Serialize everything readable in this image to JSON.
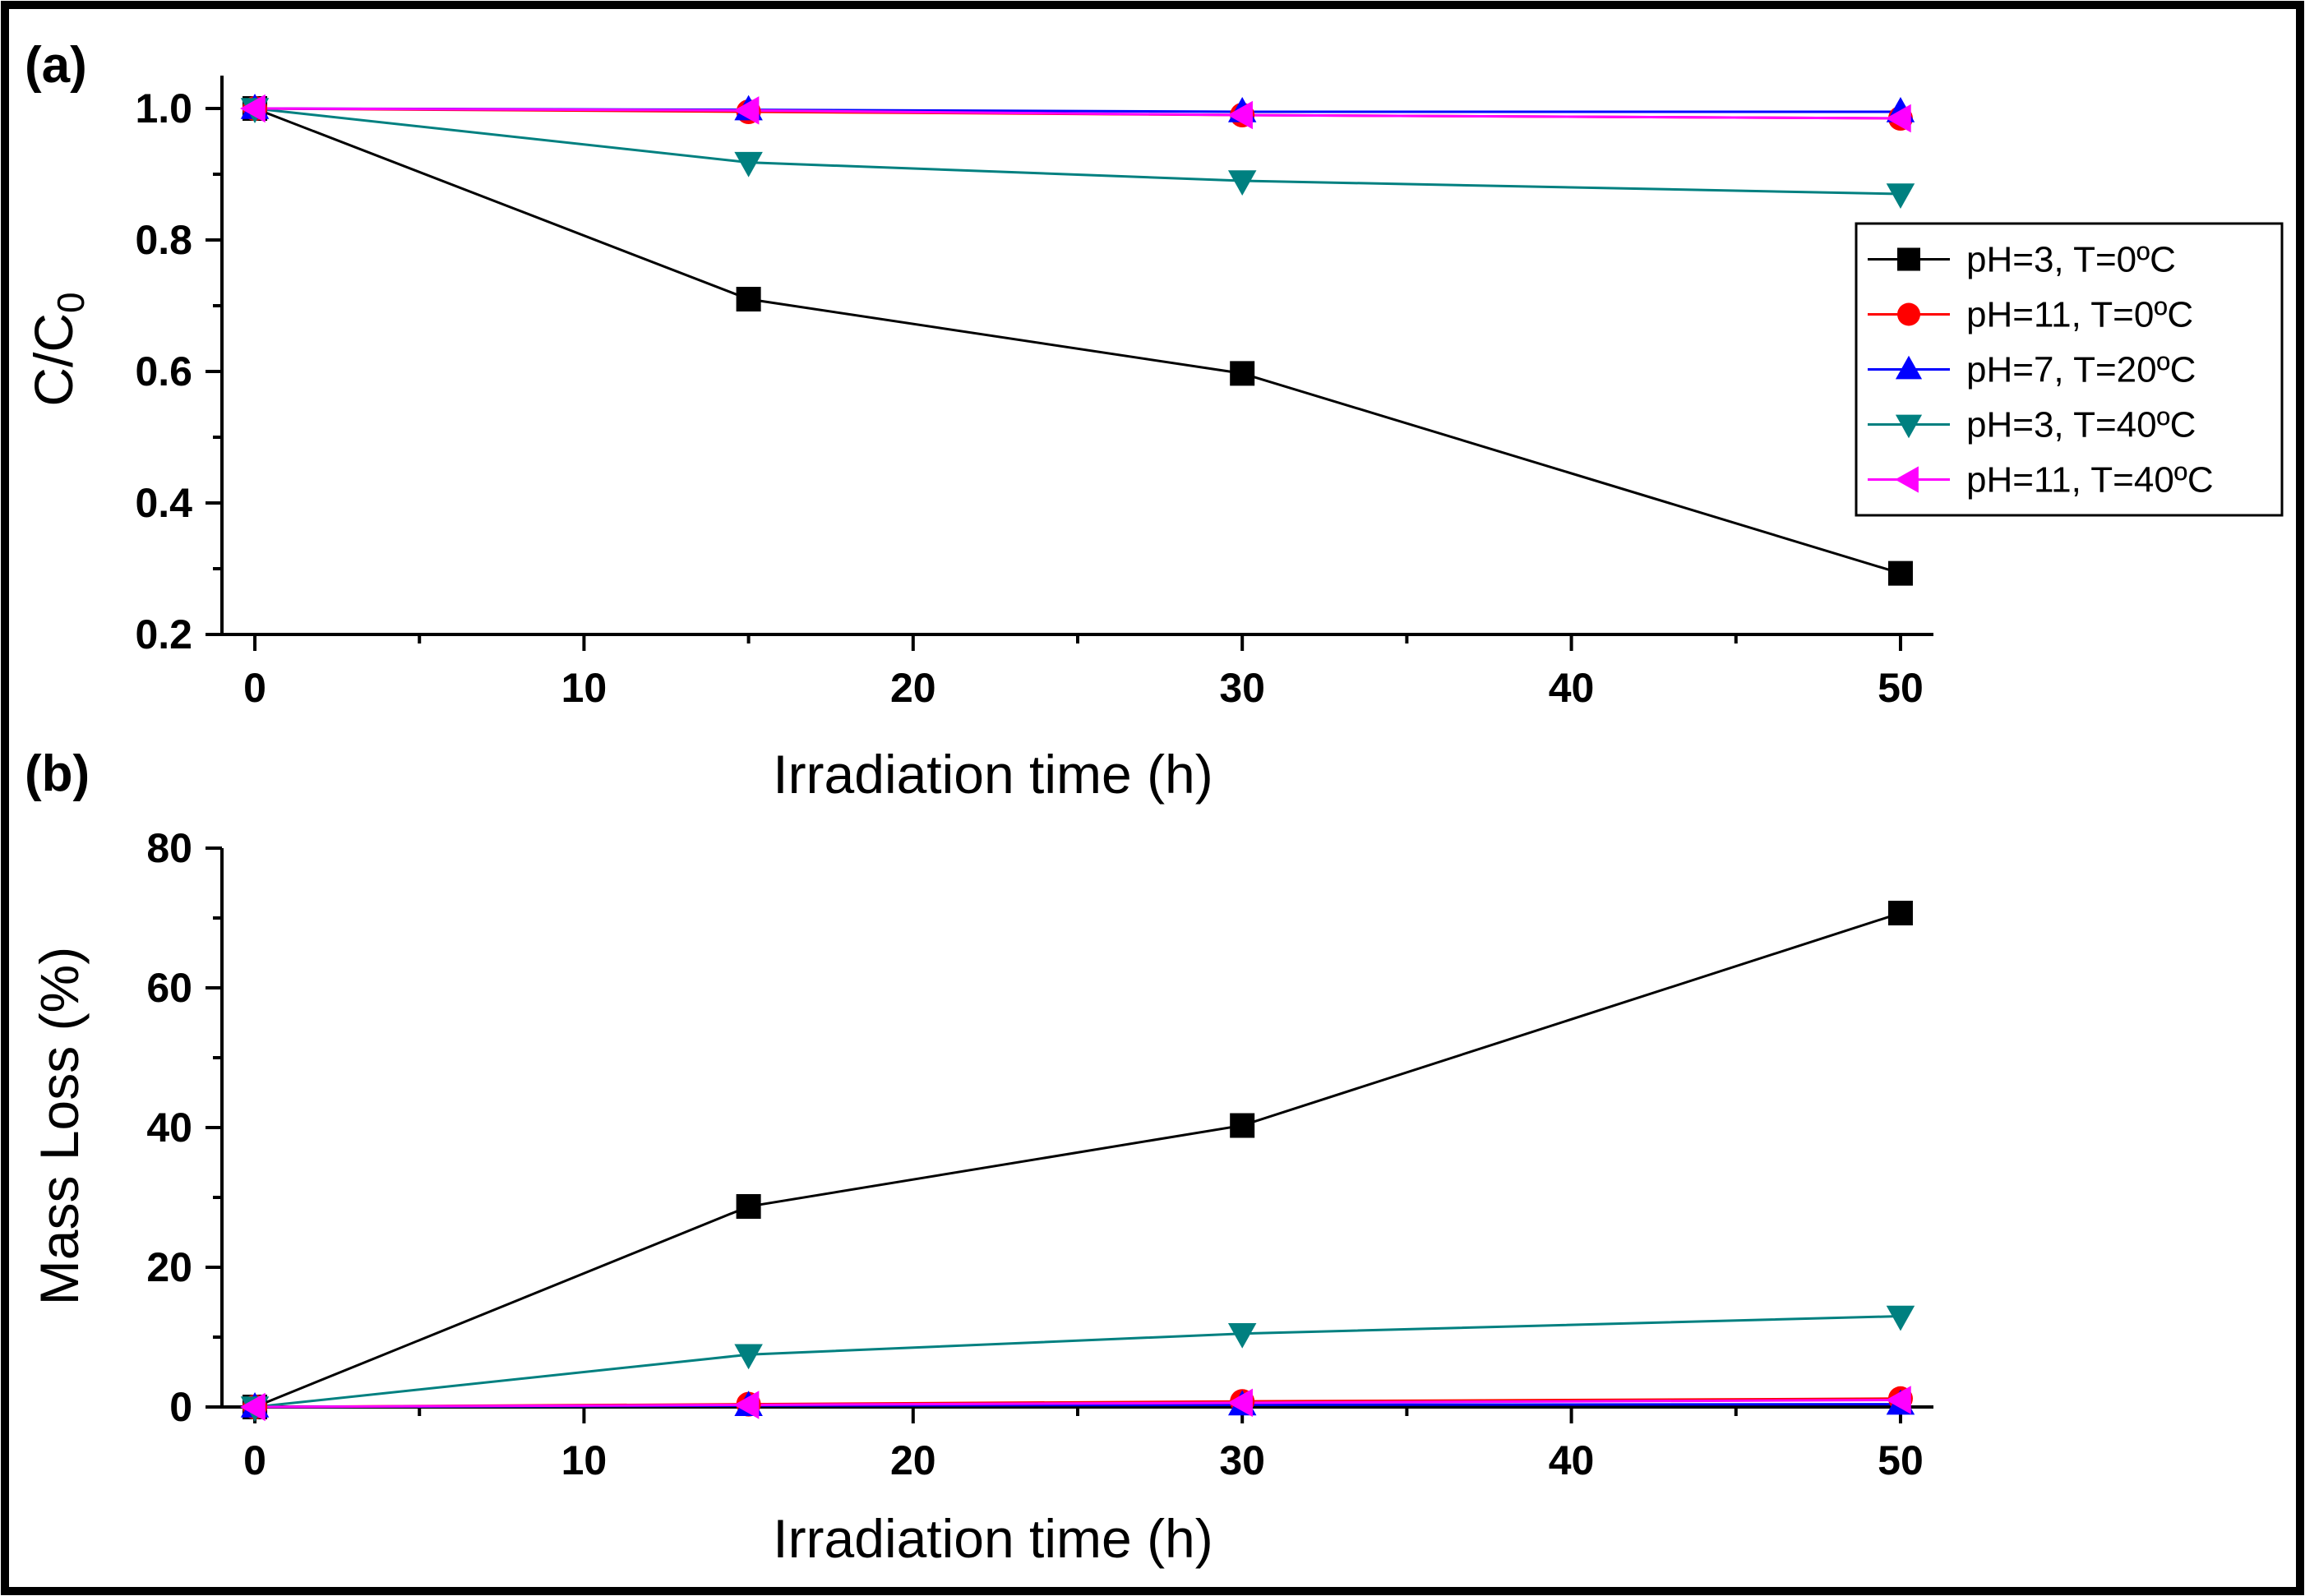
{
  "chart_data": [
    {
      "panel_label": "(a)",
      "type": "line",
      "xlabel": "Irradiation time (h)",
      "ylabel": "C/C",
      "ylabel_subscript": "0",
      "xlim": [
        -1,
        51
      ],
      "ylim": [
        0.2,
        1.05
      ],
      "xticks": [
        0,
        10,
        20,
        30,
        40,
        50
      ],
      "yticks": [
        0.2,
        0.4,
        0.6,
        0.8,
        1.0
      ],
      "xtick_labels": [
        "0",
        "10",
        "20",
        "30",
        "40",
        "50"
      ],
      "ytick_labels": [
        "0.2",
        "0.4",
        "0.6",
        "0.8",
        "1.0"
      ],
      "x": [
        0,
        15,
        30,
        50
      ],
      "legend_position": "right",
      "series": [
        {
          "name": "pH=3, T=0ºC",
          "color": "#000000",
          "marker": "square",
          "values": [
            1.0,
            0.71,
            0.597,
            0.293
          ]
        },
        {
          "name": "pH=11, T=0ºC",
          "color": "#ff0000",
          "marker": "circle",
          "values": [
            1.0,
            0.995,
            0.99,
            0.985
          ]
        },
        {
          "name": "pH=7, T=20ºC",
          "color": "#0000ff",
          "marker": "triangle-up",
          "values": [
            1.0,
            0.998,
            0.995,
            0.995
          ]
        },
        {
          "name": "pH=3, T=40ºC",
          "color": "#008080",
          "marker": "triangle-down",
          "values": [
            1.0,
            0.918,
            0.89,
            0.87
          ]
        },
        {
          "name": "pH=11, T=40ºC",
          "color": "#ff00ff",
          "marker": "triangle-left",
          "values": [
            1.0,
            0.997,
            0.99,
            0.985
          ]
        }
      ]
    },
    {
      "panel_label": "(b)",
      "type": "line",
      "xlabel": "Irradiation time (h)",
      "ylabel": "Mass Loss (%)",
      "xlim": [
        -1,
        51
      ],
      "ylim": [
        0,
        80
      ],
      "xticks": [
        0,
        10,
        20,
        30,
        40,
        50
      ],
      "yticks": [
        0,
        20,
        40,
        60,
        80
      ],
      "xtick_labels": [
        "0",
        "10",
        "20",
        "30",
        "40",
        "50"
      ],
      "ytick_labels": [
        "0",
        "20",
        "40",
        "60",
        "80"
      ],
      "x": [
        0,
        15,
        30,
        50
      ],
      "series": [
        {
          "name": "pH=3, T=0ºC",
          "color": "#000000",
          "marker": "square",
          "values": [
            0,
            28.7,
            40.3,
            70.7
          ]
        },
        {
          "name": "pH=11, T=0ºC",
          "color": "#ff0000",
          "marker": "circle",
          "values": [
            0,
            0.4,
            0.8,
            1.2
          ]
        },
        {
          "name": "pH=7, T=20ºC",
          "color": "#0000ff",
          "marker": "triangle-up",
          "values": [
            0,
            0.2,
            0.3,
            0.4
          ]
        },
        {
          "name": "pH=3, T=40ºC",
          "color": "#008080",
          "marker": "triangle-down",
          "values": [
            0,
            7.5,
            10.5,
            13.0
          ]
        },
        {
          "name": "pH=11, T=40ºC",
          "color": "#ff00ff",
          "marker": "triangle-left",
          "values": [
            0,
            0.3,
            0.6,
            1.0
          ]
        }
      ]
    }
  ]
}
